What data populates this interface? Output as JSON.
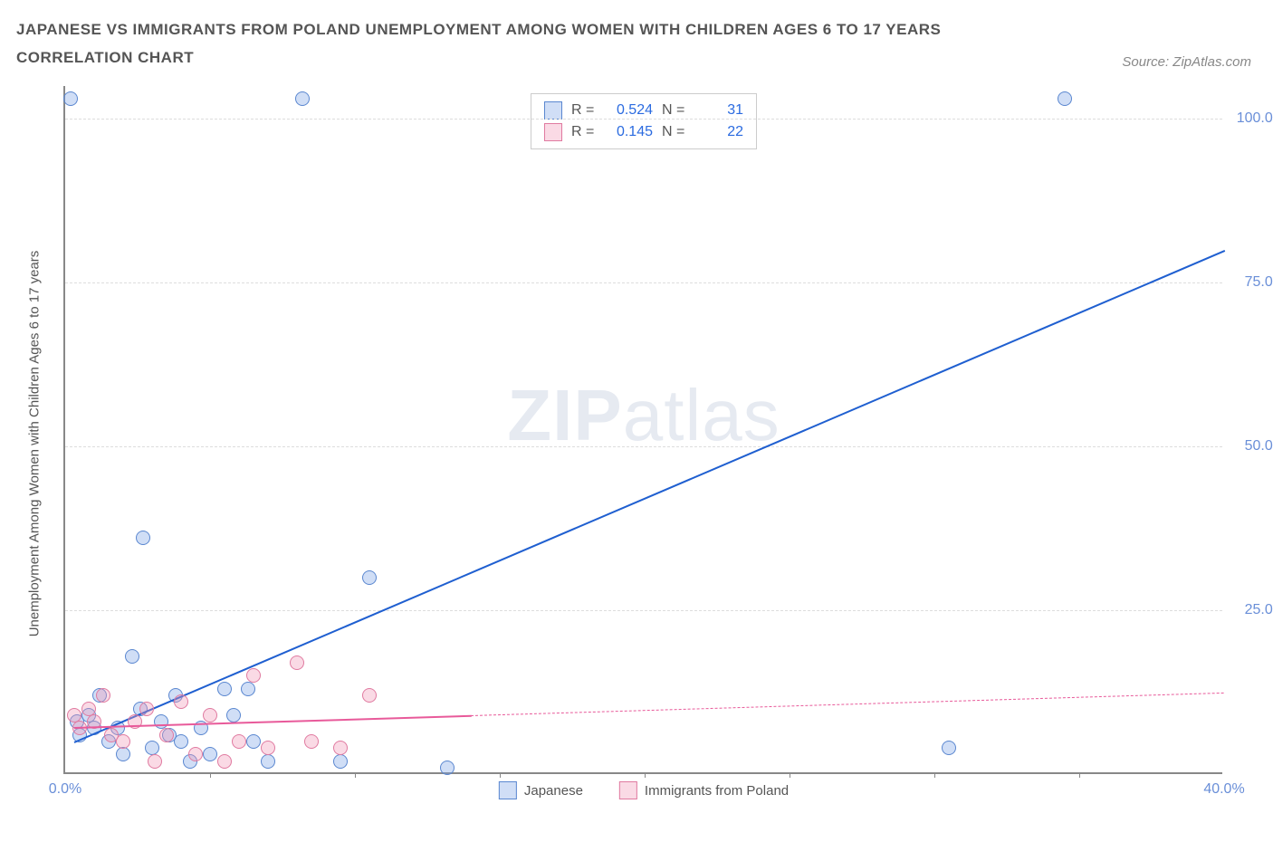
{
  "title": {
    "line1": "JAPANESE VS IMMIGRANTS FROM POLAND UNEMPLOYMENT AMONG WOMEN WITH CHILDREN AGES 6 TO 17 YEARS",
    "line2": "CORRELATION CHART",
    "fontsize": 17,
    "color": "#555555"
  },
  "source": {
    "prefix": "Source: ",
    "name": "ZipAtlas.com",
    "color": "#888888",
    "fontsize": 15
  },
  "watermark": {
    "bold": "ZIP",
    "light": "atlas"
  },
  "chart": {
    "type": "scatter",
    "y_axis_label": "Unemployment Among Women with Children Ages 6 to 17 years",
    "xlim": [
      0,
      40
    ],
    "ylim": [
      0,
      105
    ],
    "x_ticks": [
      {
        "pos": 0.0,
        "label": "0.0%"
      },
      {
        "pos": 40.0,
        "label": "40.0%"
      }
    ],
    "x_tick_marks": [
      5,
      10,
      15,
      20,
      25,
      30,
      35
    ],
    "y_ticks": [
      {
        "pos": 25,
        "label": "25.0%"
      },
      {
        "pos": 50,
        "label": "50.0%"
      },
      {
        "pos": 75,
        "label": "75.0%"
      },
      {
        "pos": 100,
        "label": "100.0%"
      }
    ],
    "grid_color": "#dddddd",
    "axis_color": "#888888",
    "tick_label_color": "#6a8fd8",
    "background_color": "#ffffff",
    "point_radius": 8,
    "series": {
      "japanese": {
        "label": "Japanese",
        "fill": "rgba(120,160,230,0.35)",
        "stroke": "#5a87d0",
        "trend_color": "#1f5fd0",
        "trend_width": 2,
        "R": "0.524",
        "N": "31",
        "trend": {
          "x1": 0.3,
          "y1": 5.0,
          "x2": 40.0,
          "y2": 80.0,
          "solid_until_x": 40.0
        },
        "points": [
          {
            "x": 0.4,
            "y": 8
          },
          {
            "x": 0.5,
            "y": 6
          },
          {
            "x": 0.8,
            "y": 9
          },
          {
            "x": 1.0,
            "y": 7
          },
          {
            "x": 1.2,
            "y": 12
          },
          {
            "x": 1.5,
            "y": 5
          },
          {
            "x": 1.8,
            "y": 7
          },
          {
            "x": 2.0,
            "y": 3
          },
          {
            "x": 2.3,
            "y": 18
          },
          {
            "x": 2.6,
            "y": 10
          },
          {
            "x": 2.7,
            "y": 36
          },
          {
            "x": 3.0,
            "y": 4
          },
          {
            "x": 3.3,
            "y": 8
          },
          {
            "x": 3.6,
            "y": 6
          },
          {
            "x": 3.8,
            "y": 12
          },
          {
            "x": 4.0,
            "y": 5
          },
          {
            "x": 4.3,
            "y": 2
          },
          {
            "x": 4.7,
            "y": 7
          },
          {
            "x": 5.0,
            "y": 3
          },
          {
            "x": 5.5,
            "y": 13
          },
          {
            "x": 5.8,
            "y": 9
          },
          {
            "x": 6.3,
            "y": 13
          },
          {
            "x": 6.5,
            "y": 5
          },
          {
            "x": 7.0,
            "y": 2
          },
          {
            "x": 8.2,
            "y": 103
          },
          {
            "x": 9.5,
            "y": 2
          },
          {
            "x": 10.5,
            "y": 30
          },
          {
            "x": 13.2,
            "y": 1
          },
          {
            "x": 30.5,
            "y": 4
          },
          {
            "x": 34.5,
            "y": 103
          },
          {
            "x": 0.2,
            "y": 103
          }
        ]
      },
      "poland": {
        "label": "Immigrants from Poland",
        "fill": "rgba(240,150,180,0.35)",
        "stroke": "#e07aa0",
        "trend_color": "#e85a9a",
        "trend_width": 2,
        "R": "0.145",
        "N": "22",
        "trend": {
          "x1": 0.3,
          "y1": 7.2,
          "x2": 40.0,
          "y2": 12.5,
          "solid_until_x": 14.0
        },
        "points": [
          {
            "x": 0.3,
            "y": 9
          },
          {
            "x": 0.5,
            "y": 7
          },
          {
            "x": 0.8,
            "y": 10
          },
          {
            "x": 1.0,
            "y": 8
          },
          {
            "x": 1.3,
            "y": 12
          },
          {
            "x": 1.6,
            "y": 6
          },
          {
            "x": 2.0,
            "y": 5
          },
          {
            "x": 2.4,
            "y": 8
          },
          {
            "x": 2.8,
            "y": 10
          },
          {
            "x": 3.1,
            "y": 2
          },
          {
            "x": 3.5,
            "y": 6
          },
          {
            "x": 4.0,
            "y": 11
          },
          {
            "x": 4.5,
            "y": 3
          },
          {
            "x": 5.0,
            "y": 9
          },
          {
            "x": 5.5,
            "y": 2
          },
          {
            "x": 6.0,
            "y": 5
          },
          {
            "x": 6.5,
            "y": 15
          },
          {
            "x": 7.0,
            "y": 4
          },
          {
            "x": 8.0,
            "y": 17
          },
          {
            "x": 8.5,
            "y": 5
          },
          {
            "x": 9.5,
            "y": 4
          },
          {
            "x": 10.5,
            "y": 12
          }
        ]
      }
    },
    "legend_corr": {
      "r_label": "R =",
      "n_label": "N ="
    },
    "bottom_legend": {
      "items": [
        "japanese",
        "poland"
      ]
    }
  }
}
